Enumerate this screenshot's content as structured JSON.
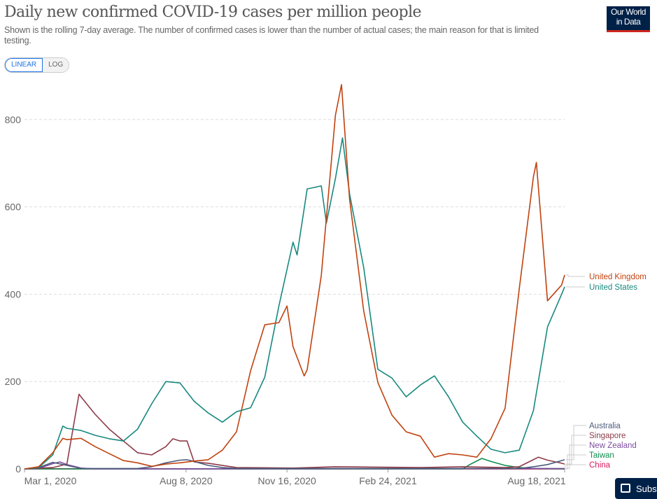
{
  "header": {
    "title": "Daily new confirmed COVID-19 cases per million people",
    "subtitle": "Shown is the rolling 7-day average. The number of confirmed cases is lower than the number of actual cases; the main reason for that is limited testing.",
    "logo_line1": "Our World",
    "logo_line2": "in Data"
  },
  "scale_toggle": {
    "linear": "LINEAR",
    "log": "LOG",
    "selected": "LINEAR"
  },
  "subscribe_label": "Subs",
  "chart_data": {
    "type": "line",
    "title": "Daily new confirmed COVID-19 cases per million people",
    "xlim": [
      "2020-03-01",
      "2021-08-18"
    ],
    "ylim": [
      0,
      880
    ],
    "x_ticks": [
      {
        "date": "2020-03-01",
        "label": "Mar 1, 2020"
      },
      {
        "date": "2020-08-08",
        "label": "Aug 8, 2020"
      },
      {
        "date": "2020-11-16",
        "label": "Nov 16, 2020"
      },
      {
        "date": "2021-02-24",
        "label": "Feb 24, 2021"
      },
      {
        "date": "2021-08-18",
        "label": "Aug 18, 2021"
      }
    ],
    "y_ticks": [
      0,
      200,
      400,
      600,
      800
    ],
    "grid": "horizontal dashed",
    "legend": "right, end-of-line labels",
    "series": [
      {
        "name": "United Kingdom",
        "color": "#c0420f",
        "points": [
          [
            "2020-03-01",
            0
          ],
          [
            "2020-03-15",
            5
          ],
          [
            "2020-03-29",
            37
          ],
          [
            "2020-04-08",
            70
          ],
          [
            "2020-04-12",
            67
          ],
          [
            "2020-04-26",
            70
          ],
          [
            "2020-05-10",
            51
          ],
          [
            "2020-05-24",
            35
          ],
          [
            "2020-06-07",
            19
          ],
          [
            "2020-06-21",
            14
          ],
          [
            "2020-07-05",
            6
          ],
          [
            "2020-07-19",
            11
          ],
          [
            "2020-08-02",
            14
          ],
          [
            "2020-08-16",
            18
          ],
          [
            "2020-08-30",
            21
          ],
          [
            "2020-09-13",
            43
          ],
          [
            "2020-09-27",
            85
          ],
          [
            "2020-10-11",
            225
          ],
          [
            "2020-10-25",
            330
          ],
          [
            "2020-11-08",
            335
          ],
          [
            "2020-11-16",
            373
          ],
          [
            "2020-11-22",
            280
          ],
          [
            "2020-12-03",
            213
          ],
          [
            "2020-12-06",
            227
          ],
          [
            "2020-12-20",
            443
          ],
          [
            "2021-01-03",
            810
          ],
          [
            "2021-01-09",
            880
          ],
          [
            "2021-01-17",
            618
          ],
          [
            "2021-01-31",
            362
          ],
          [
            "2021-02-14",
            198
          ],
          [
            "2021-02-28",
            123
          ],
          [
            "2021-03-14",
            85
          ],
          [
            "2021-03-28",
            75
          ],
          [
            "2021-04-11",
            27
          ],
          [
            "2021-04-25",
            35
          ],
          [
            "2021-05-09",
            32
          ],
          [
            "2021-05-23",
            27
          ],
          [
            "2021-06-06",
            69
          ],
          [
            "2021-06-20",
            139
          ],
          [
            "2021-07-04",
            412
          ],
          [
            "2021-07-18",
            668
          ],
          [
            "2021-07-21",
            702
          ],
          [
            "2021-08-01",
            385
          ],
          [
            "2021-08-15",
            421
          ],
          [
            "2021-08-18",
            444
          ]
        ]
      },
      {
        "name": "United States",
        "color": "#18897f",
        "points": [
          [
            "2020-03-01",
            0
          ],
          [
            "2020-03-15",
            3
          ],
          [
            "2020-03-29",
            32
          ],
          [
            "2020-04-08",
            98
          ],
          [
            "2020-04-12",
            93
          ],
          [
            "2020-04-26",
            88
          ],
          [
            "2020-05-10",
            77
          ],
          [
            "2020-05-24",
            69
          ],
          [
            "2020-06-07",
            64
          ],
          [
            "2020-06-21",
            91
          ],
          [
            "2020-07-05",
            149
          ],
          [
            "2020-07-19",
            200
          ],
          [
            "2020-08-02",
            197
          ],
          [
            "2020-08-16",
            155
          ],
          [
            "2020-08-30",
            128
          ],
          [
            "2020-09-13",
            107
          ],
          [
            "2020-09-27",
            131
          ],
          [
            "2020-10-11",
            140
          ],
          [
            "2020-10-25",
            210
          ],
          [
            "2020-11-08",
            373
          ],
          [
            "2020-11-22",
            519
          ],
          [
            "2020-11-26",
            490
          ],
          [
            "2020-12-06",
            641
          ],
          [
            "2020-12-20",
            648
          ],
          [
            "2020-12-25",
            563
          ],
          [
            "2021-01-03",
            665
          ],
          [
            "2021-01-10",
            758
          ],
          [
            "2021-01-17",
            630
          ],
          [
            "2021-01-31",
            461
          ],
          [
            "2021-02-14",
            228
          ],
          [
            "2021-02-28",
            208
          ],
          [
            "2021-03-14",
            165
          ],
          [
            "2021-03-28",
            192
          ],
          [
            "2021-04-11",
            213
          ],
          [
            "2021-04-25",
            165
          ],
          [
            "2021-05-09",
            107
          ],
          [
            "2021-05-23",
            75
          ],
          [
            "2021-06-06",
            45
          ],
          [
            "2021-06-20",
            37
          ],
          [
            "2021-07-04",
            43
          ],
          [
            "2021-07-18",
            133
          ],
          [
            "2021-08-01",
            325
          ],
          [
            "2021-08-15",
            400
          ],
          [
            "2021-08-18",
            417
          ]
        ]
      },
      {
        "name": "Australia",
        "color": "#4c5b7d",
        "points": [
          [
            "2020-03-01",
            0
          ],
          [
            "2020-03-15",
            3
          ],
          [
            "2020-03-29",
            15
          ],
          [
            "2020-04-12",
            8
          ],
          [
            "2020-04-26",
            1
          ],
          [
            "2020-06-21",
            1
          ],
          [
            "2020-07-05",
            5
          ],
          [
            "2020-07-19",
            14
          ],
          [
            "2020-08-02",
            20
          ],
          [
            "2020-08-09",
            21
          ],
          [
            "2020-08-16",
            17
          ],
          [
            "2020-08-30",
            8
          ],
          [
            "2020-09-13",
            3
          ],
          [
            "2020-09-27",
            1
          ],
          [
            "2021-07-04",
            1
          ],
          [
            "2021-07-18",
            5
          ],
          [
            "2021-08-01",
            10
          ],
          [
            "2021-08-15",
            19
          ],
          [
            "2021-08-18",
            21
          ]
        ]
      },
      {
        "name": "Singapore",
        "color": "#8e3b49",
        "points": [
          [
            "2020-03-01",
            0
          ],
          [
            "2020-03-29",
            3
          ],
          [
            "2020-04-12",
            11
          ],
          [
            "2020-04-24",
            171
          ],
          [
            "2020-04-26",
            165
          ],
          [
            "2020-05-10",
            125
          ],
          [
            "2020-05-24",
            91
          ],
          [
            "2020-06-07",
            64
          ],
          [
            "2020-06-21",
            37
          ],
          [
            "2020-07-05",
            32
          ],
          [
            "2020-07-19",
            51
          ],
          [
            "2020-07-26",
            69
          ],
          [
            "2020-08-02",
            64
          ],
          [
            "2020-08-09",
            64
          ],
          [
            "2020-08-16",
            16
          ],
          [
            "2020-08-30",
            13
          ],
          [
            "2020-09-27",
            3
          ],
          [
            "2020-11-22",
            2
          ],
          [
            "2021-01-03",
            5
          ],
          [
            "2021-03-28",
            3
          ],
          [
            "2021-05-09",
            5
          ],
          [
            "2021-06-20",
            3
          ],
          [
            "2021-07-04",
            5
          ],
          [
            "2021-07-23",
            27
          ],
          [
            "2021-08-01",
            20
          ],
          [
            "2021-08-15",
            13
          ],
          [
            "2021-08-18",
            11
          ]
        ]
      },
      {
        "name": "New Zealand",
        "color": "#7d4ea0",
        "points": [
          [
            "2020-03-01",
            0
          ],
          [
            "2020-03-15",
            1
          ],
          [
            "2020-03-29",
            12
          ],
          [
            "2020-04-05",
            16
          ],
          [
            "2020-04-12",
            10
          ],
          [
            "2020-04-26",
            2
          ],
          [
            "2020-05-10",
            0
          ],
          [
            "2021-08-18",
            1
          ]
        ]
      },
      {
        "name": "Taiwan",
        "color": "#0f8e4e",
        "points": [
          [
            "2020-03-01",
            0
          ],
          [
            "2021-05-09",
            0
          ],
          [
            "2021-05-16",
            10
          ],
          [
            "2021-05-28",
            24
          ],
          [
            "2021-06-06",
            17
          ],
          [
            "2021-06-20",
            8
          ],
          [
            "2021-07-04",
            3
          ],
          [
            "2021-07-18",
            1
          ],
          [
            "2021-08-18",
            0
          ]
        ]
      },
      {
        "name": "China",
        "color": "#d6195e",
        "points": [
          [
            "2020-03-01",
            0.3
          ],
          [
            "2021-08-18",
            0.1
          ]
        ]
      }
    ]
  }
}
